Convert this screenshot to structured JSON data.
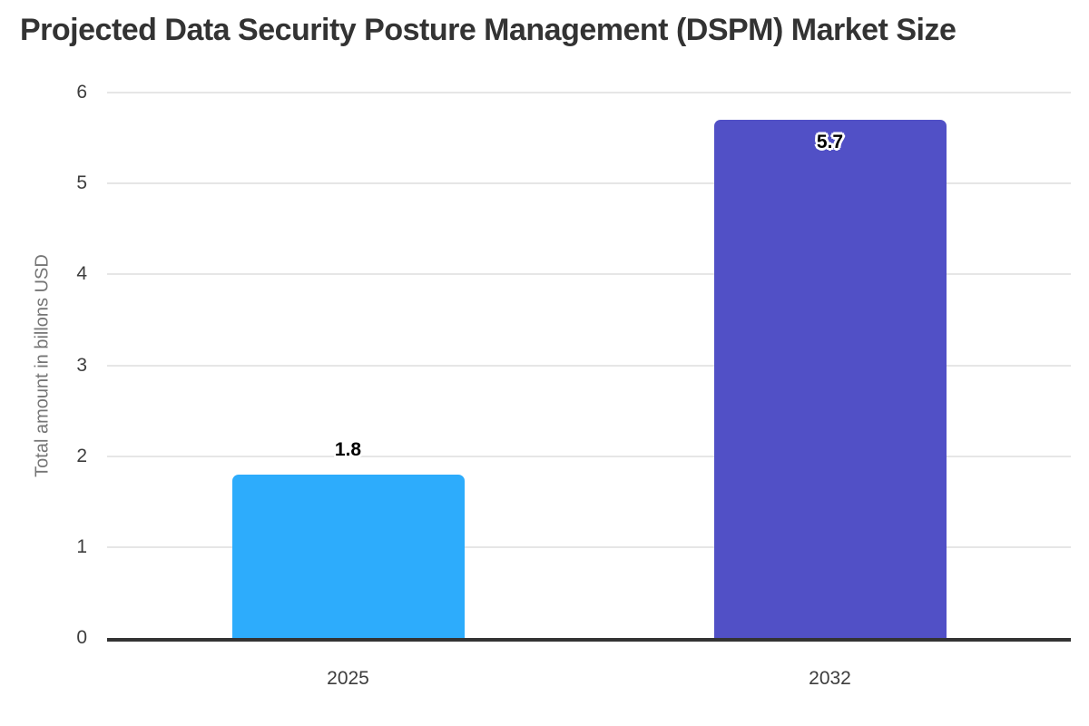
{
  "chart_data": {
    "type": "bar",
    "title": "Projected Data Security Posture Management (DSPM) Market Size",
    "xlabel": "",
    "ylabel": "Total amount in billons USD",
    "categories": [
      "2025",
      "2032"
    ],
    "values": [
      1.8,
      5.7
    ],
    "value_labels": [
      "1.8",
      "5.7"
    ],
    "bar_colors": [
      "#2DACFC",
      "#5150C6"
    ],
    "ylim": [
      0,
      6
    ],
    "y_ticks": [
      0,
      1,
      2,
      3,
      4,
      5,
      6
    ],
    "grid": "horizontal",
    "legend": "none",
    "colors": {
      "background": "#ffffff",
      "title_text": "#333333",
      "tick_text": "#3d3d3d",
      "axis_title_text": "#757575",
      "gridline": "#e6e6e6",
      "axis_line": "#333333",
      "value_label_text": "#000000",
      "value_label_outline": "#ffffff"
    }
  }
}
